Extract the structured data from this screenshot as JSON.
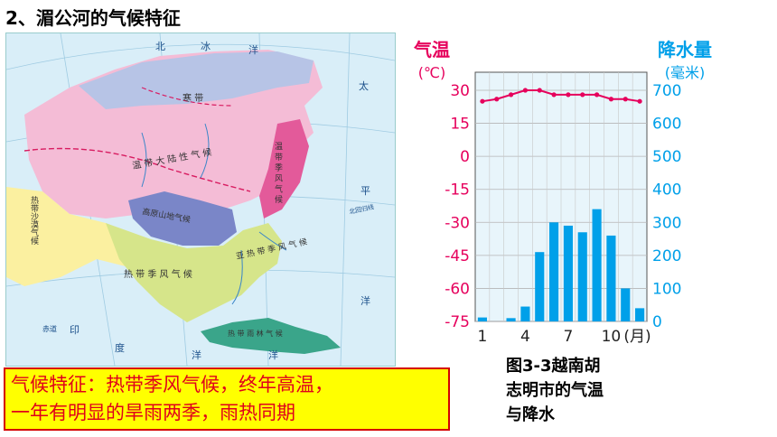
{
  "heading": "2、湄公河的气候特征",
  "map": {
    "labels": {
      "north": "北",
      "bing": "冰",
      "yang": "洋",
      "tai": "太",
      "ping": "平",
      "beiguihuixian": "北回归线",
      "chidao": "赤道",
      "yin": "印",
      "du": "度",
      "yang2": "洋",
      "yang3": "洋",
      "yang4": "洋",
      "hanzone": "寒 带",
      "wendaidalu": "温 带 大 陆 性 气 候",
      "wendaijifeng": "温 带 季 风 气 候",
      "gaoyuan": "高原山地气候",
      "redaishamo": "热带沙漠气候",
      "yaredai": "亚 热 带 季 风 气 候",
      "redaijifeng": "热 带 季 风 气 候",
      "redaiyulin": "热 带 雨 林 气 候"
    },
    "colors": {
      "sea": "#d9eef8",
      "pink": "#f4bcd6",
      "pinkDark": "#e35a9a",
      "lavender": "#cfd2ec",
      "tundra": "#b7c4e6",
      "yellow": "#fbf0a0",
      "green": "#d6e58a",
      "blue": "#7a86c8",
      "rainforest": "#3aa58a"
    }
  },
  "chart_data": {
    "type": "bar",
    "left_axis_title": [
      "气温",
      "(℃)"
    ],
    "right_axis_title": [
      "降水量",
      "(毫米)"
    ],
    "temp_ticks": [
      30,
      15,
      0,
      -15,
      -30,
      -45,
      -60,
      -75
    ],
    "precip_ticks": [
      700,
      600,
      500,
      400,
      300,
      200,
      100,
      0
    ],
    "temp_range": [
      -75,
      30
    ],
    "precip_range": [
      0,
      700
    ],
    "x_tick_labels": [
      "1",
      "4",
      "7",
      "10"
    ],
    "x_tick_months": [
      1,
      4,
      7,
      10
    ],
    "x_unit": "(月)",
    "months": [
      1,
      2,
      3,
      4,
      5,
      6,
      7,
      8,
      9,
      10,
      11,
      12
    ],
    "temperature": [
      25,
      26,
      28,
      30,
      30,
      28,
      28,
      28,
      28,
      26,
      26,
      25
    ],
    "precipitation": [
      12,
      0,
      10,
      45,
      210,
      300,
      290,
      270,
      340,
      260,
      100,
      40
    ],
    "colors": {
      "temp": "#e6005c",
      "precip": "#00a0e9",
      "axisLeft": "#e6005c",
      "axisRight": "#00a0e9",
      "bg": "#e8f5fb"
    }
  },
  "caption_lines": [
    "图3-3越南胡",
    "志明市的气温",
    "与降水"
  ],
  "feature_lines": [
    "气候特征：热带季风气候，终年高温，",
    "一年有明显的旱雨两季，雨热同期"
  ]
}
